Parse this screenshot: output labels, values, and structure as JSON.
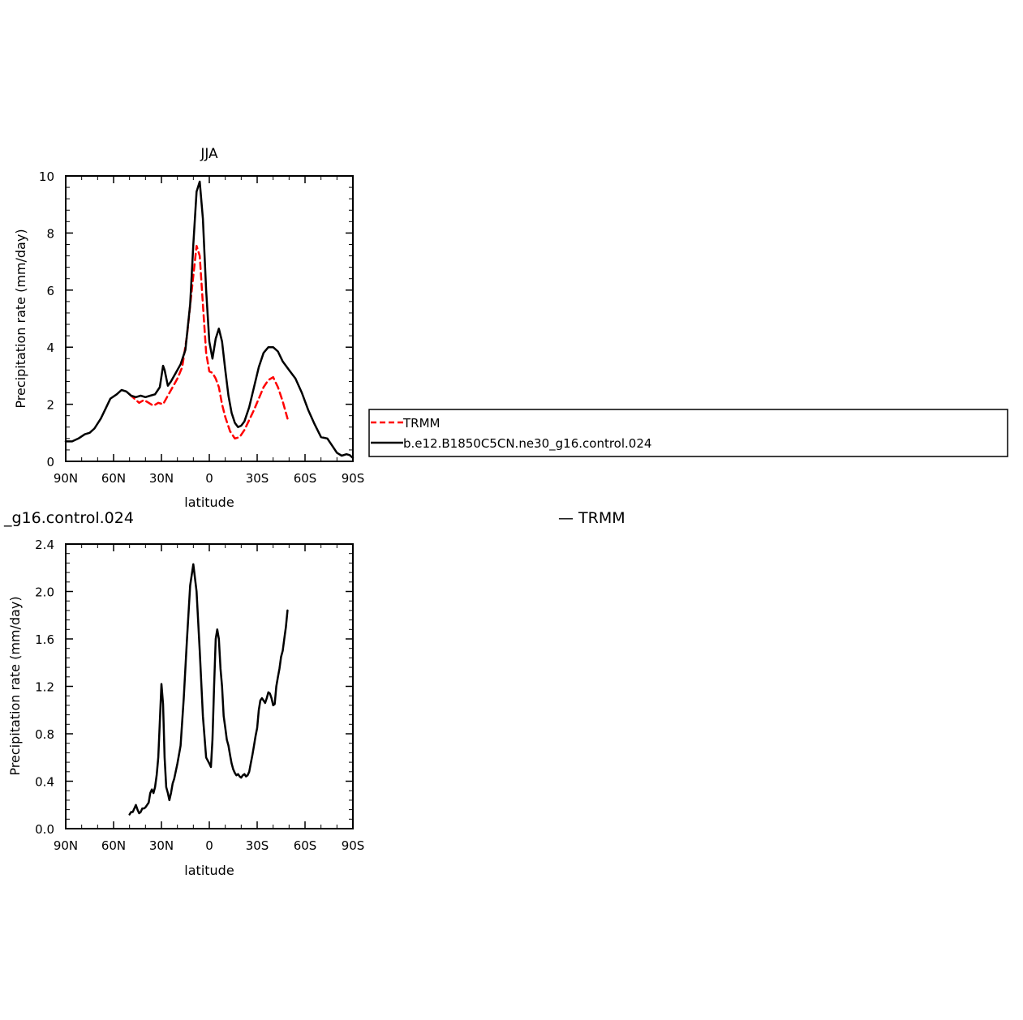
{
  "colors": {
    "trmm": "#ff0000",
    "model": "#000000",
    "axis": "#000000"
  },
  "legend": [
    {
      "label": "TRMM",
      "color": "#ff0000",
      "dash": true
    },
    {
      "label": "b.e12.B1850C5CN.ne30_g16.control.024",
      "color": "#000000",
      "dash": false
    }
  ],
  "bottom_header": {
    "left_text": "_g16.control.024",
    "right_text": "— TRMM"
  },
  "chart_data": [
    {
      "type": "line",
      "title": "JJA",
      "xlabel": "latitude",
      "ylabel": "Precipitation rate (mm/day)",
      "xlim": [
        90,
        -90
      ],
      "ylim": [
        0,
        10
      ],
      "x_ticks": [
        90,
        60,
        30,
        0,
        -30,
        -60,
        -90
      ],
      "x_tick_labels": [
        "90N",
        "60N",
        "30N",
        "0",
        "30S",
        "60S",
        "90S"
      ],
      "y_ticks": [
        0,
        2,
        4,
        6,
        8,
        10
      ],
      "y_tick_labels": [
        "0",
        "2",
        "4",
        "6",
        "8",
        "10"
      ],
      "series": [
        {
          "name": "TRMM",
          "color": "#ff0000",
          "dash": true,
          "x": [
            50,
            47,
            44,
            41,
            38,
            35,
            32,
            29,
            26,
            23,
            20,
            17,
            14,
            11,
            8,
            6,
            4,
            2,
            0,
            -2,
            -4,
            -6,
            -8,
            -10,
            -13,
            -16,
            -19,
            -22,
            -25,
            -28,
            -31,
            -34,
            -37,
            -40,
            -43,
            -46,
            -49
          ],
          "y": [
            2.35,
            2.2,
            2.05,
            2.15,
            2.05,
            1.95,
            2.05,
            2.0,
            2.3,
            2.6,
            2.9,
            3.3,
            4.4,
            6.0,
            7.55,
            7.2,
            5.5,
            3.8,
            3.15,
            3.1,
            2.9,
            2.6,
            2.0,
            1.55,
            1.05,
            0.8,
            0.85,
            1.1,
            1.45,
            1.8,
            2.2,
            2.6,
            2.85,
            2.95,
            2.6,
            2.1,
            1.5
          ]
        },
        {
          "name": "b.e12.B1850C5CN.ne30_g16.control.024",
          "color": "#000000",
          "dash": false,
          "x": [
            90,
            86,
            82,
            78,
            75,
            72,
            68,
            65,
            62,
            58,
            55,
            52,
            49,
            46,
            43,
            40,
            37,
            34,
            31,
            29,
            28,
            26,
            24,
            21,
            18,
            15,
            12,
            10,
            8,
            6,
            4,
            2,
            0,
            -2,
            -4,
            -6,
            -8,
            -10,
            -12,
            -14,
            -16,
            -18,
            -20,
            -22,
            -25,
            -28,
            -31,
            -34,
            -37,
            -40,
            -43,
            -46,
            -50,
            -54,
            -58,
            -62,
            -66,
            -70,
            -74,
            -77,
            -80,
            -83,
            -86,
            -88,
            -90
          ],
          "y": [
            0.7,
            0.7,
            0.8,
            0.95,
            1.0,
            1.15,
            1.5,
            1.85,
            2.2,
            2.35,
            2.5,
            2.45,
            2.3,
            2.25,
            2.3,
            2.25,
            2.3,
            2.35,
            2.6,
            3.35,
            3.2,
            2.65,
            2.8,
            3.1,
            3.4,
            3.9,
            5.5,
            7.6,
            9.45,
            9.8,
            8.5,
            6.0,
            4.2,
            3.6,
            4.3,
            4.65,
            4.2,
            3.2,
            2.3,
            1.7,
            1.35,
            1.2,
            1.25,
            1.4,
            1.9,
            2.6,
            3.3,
            3.8,
            4.0,
            4.0,
            3.85,
            3.5,
            3.2,
            2.9,
            2.4,
            1.8,
            1.3,
            0.85,
            0.8,
            0.55,
            0.3,
            0.2,
            0.25,
            0.22,
            0.12
          ]
        }
      ]
    },
    {
      "type": "line",
      "title": "",
      "xlabel": "latitude",
      "ylabel": "Precipitation rate (mm/day)",
      "xlim": [
        90,
        -90
      ],
      "ylim": [
        0,
        2.4
      ],
      "x_ticks": [
        90,
        60,
        30,
        0,
        -30,
        -60,
        -90
      ],
      "x_tick_labels": [
        "90N",
        "60N",
        "30N",
        "0",
        "30S",
        "60S",
        "90S"
      ],
      "y_ticks": [
        0,
        0.4,
        0.8,
        1.2,
        1.6,
        2.0,
        2.4
      ],
      "y_tick_labels": [
        "0.0",
        "0.4",
        "0.8",
        "1.2",
        "1.6",
        "2.0",
        "2.4"
      ],
      "series": [
        {
          "color": "#000000",
          "dash": false,
          "x": [
            50,
            49,
            48,
            47,
            46,
            45,
            44,
            43,
            42,
            41,
            40,
            39,
            38,
            37,
            36,
            35,
            34,
            33,
            32,
            31,
            30,
            29,
            28,
            27,
            26,
            25,
            24,
            23,
            22,
            20,
            18,
            16,
            14,
            12,
            10,
            8,
            6,
            4,
            2,
            0,
            -1,
            -2,
            -3,
            -4,
            -5,
            -6,
            -7,
            -8,
            -9,
            -10,
            -11,
            -12,
            -13,
            -14,
            -15,
            -16,
            -17,
            -18,
            -19,
            -20,
            -21,
            -22,
            -23,
            -24,
            -25,
            -26,
            -27,
            -28,
            -29,
            -30,
            -31,
            -32,
            -33,
            -34,
            -35,
            -36,
            -37,
            -38,
            -39,
            -40,
            -41,
            -42,
            -43,
            -44,
            -45,
            -46,
            -47,
            -48,
            -49
          ],
          "y": [
            0.12,
            0.14,
            0.14,
            0.17,
            0.2,
            0.16,
            0.13,
            0.14,
            0.17,
            0.17,
            0.18,
            0.2,
            0.22,
            0.3,
            0.33,
            0.3,
            0.35,
            0.45,
            0.6,
            0.9,
            1.22,
            1.05,
            0.6,
            0.35,
            0.3,
            0.24,
            0.3,
            0.38,
            0.42,
            0.55,
            0.7,
            1.1,
            1.6,
            2.05,
            2.23,
            2.0,
            1.5,
            0.95,
            0.6,
            0.55,
            0.52,
            0.75,
            1.2,
            1.6,
            1.68,
            1.6,
            1.35,
            1.2,
            0.95,
            0.85,
            0.75,
            0.7,
            0.62,
            0.55,
            0.5,
            0.47,
            0.45,
            0.46,
            0.44,
            0.43,
            0.45,
            0.46,
            0.44,
            0.45,
            0.48,
            0.55,
            0.62,
            0.7,
            0.78,
            0.85,
            1.0,
            1.08,
            1.1,
            1.08,
            1.06,
            1.1,
            1.15,
            1.14,
            1.1,
            1.04,
            1.05,
            1.2,
            1.28,
            1.35,
            1.45,
            1.5,
            1.6,
            1.7,
            1.84
          ]
        }
      ]
    }
  ]
}
